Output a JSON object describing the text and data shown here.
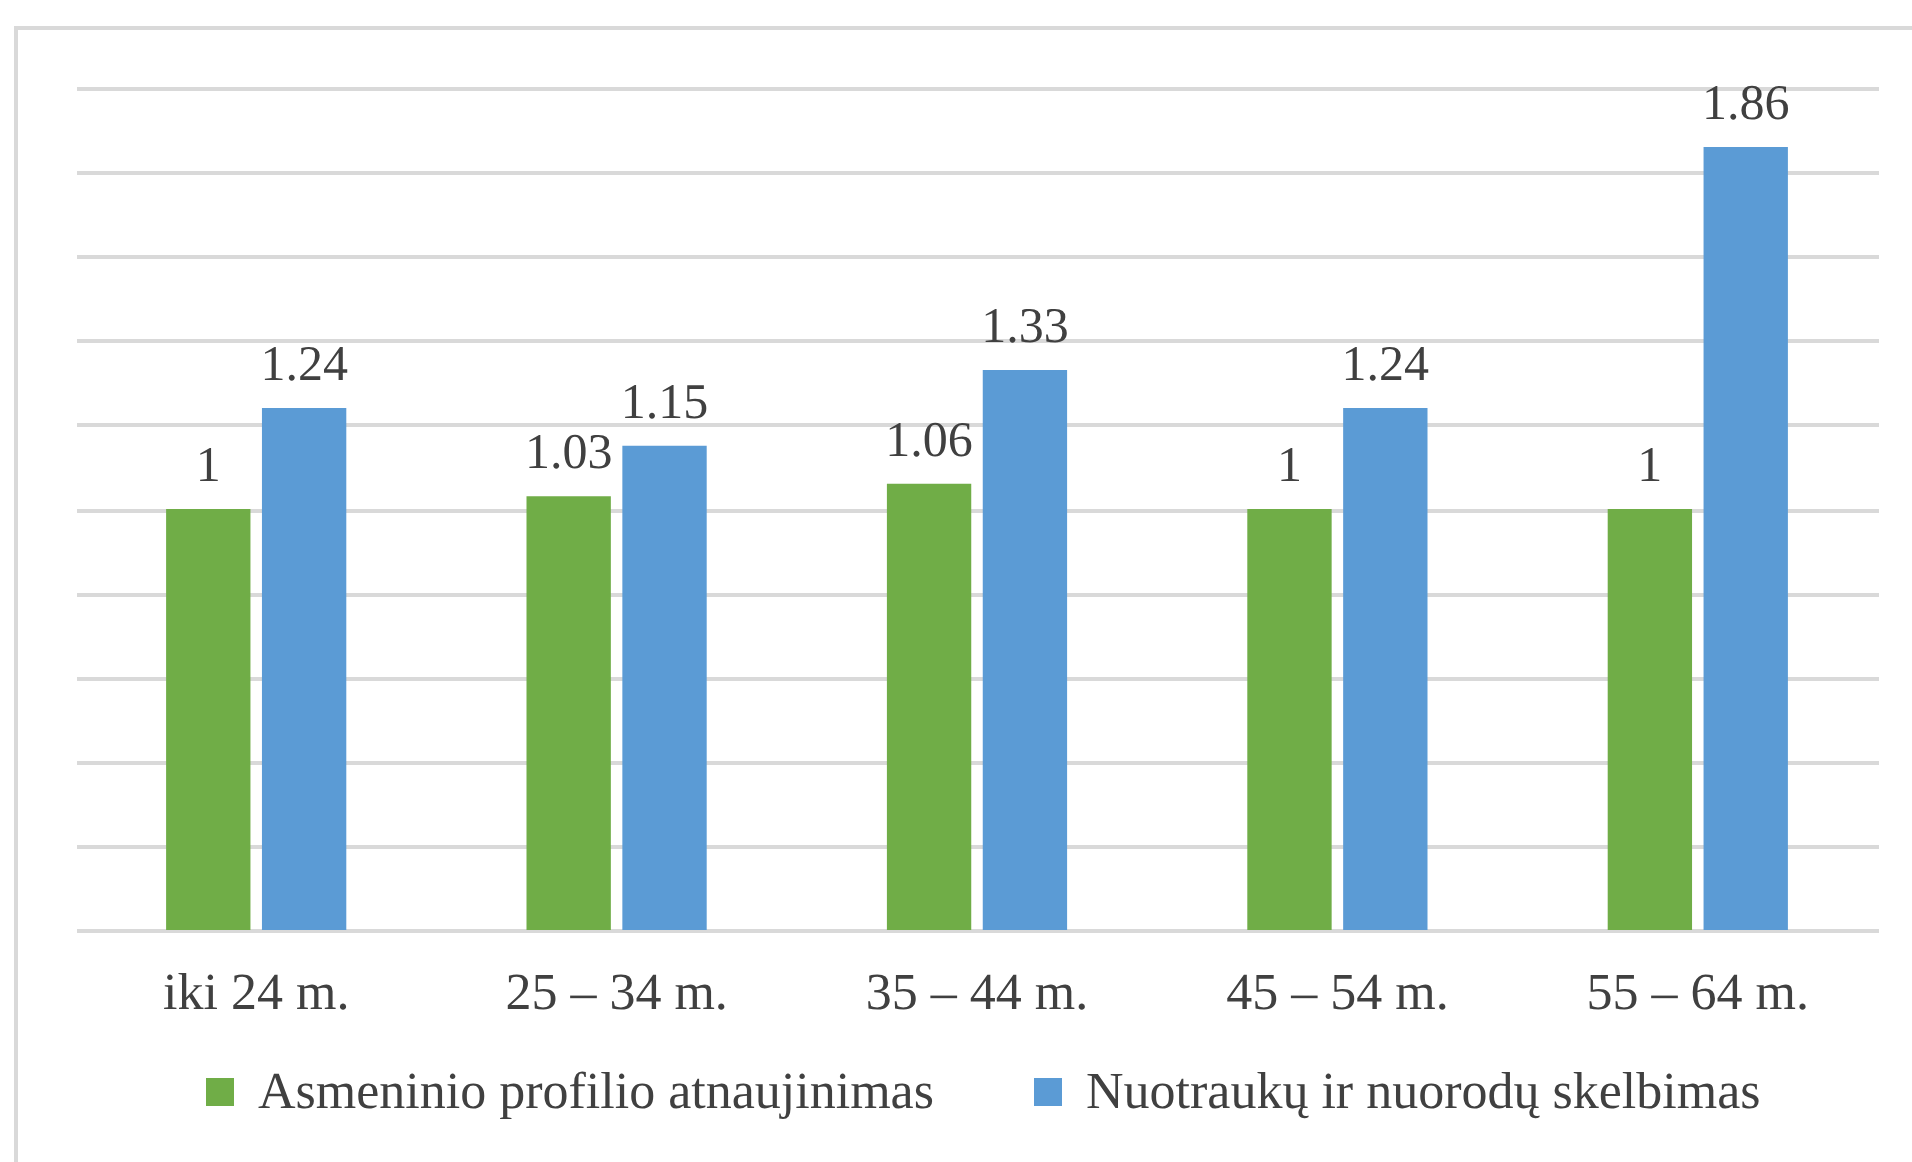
{
  "chart_data": {
    "type": "bar",
    "categories": [
      "iki 24 m.",
      "25 – 34 m.",
      "35 – 44 m.",
      "45 – 54 m.",
      "55 – 64 m."
    ],
    "series": [
      {
        "name": "Asmeninio profilio atnaujinimas",
        "color": "#70ad47",
        "values": [
          1,
          1.03,
          1.06,
          1,
          1
        ]
      },
      {
        "name": "Nuotraukų ir nuorodų skelbimas",
        "color": "#5b9bd5",
        "values": [
          1.24,
          1.15,
          1.33,
          1.24,
          1.86
        ]
      }
    ],
    "ylim": [
      0,
      2
    ],
    "yticks": [
      {
        "value": 0,
        "label": null
      },
      {
        "value": 0.2,
        "label": null
      },
      {
        "value": 0.4,
        "label": null
      },
      {
        "value": 0.6,
        "label": null
      },
      {
        "value": 0.8,
        "label": null
      },
      {
        "value": 1,
        "label": null
      },
      {
        "value": 1.2,
        "label": null
      },
      {
        "value": 1.4,
        "label": null
      },
      {
        "value": 1.6,
        "label": null
      },
      {
        "value": 1.8,
        "label": null
      },
      {
        "value": 2,
        "label": null
      }
    ],
    "grid": "y",
    "legend": "bottom",
    "data_labels": true,
    "tick_labels": "x"
  }
}
